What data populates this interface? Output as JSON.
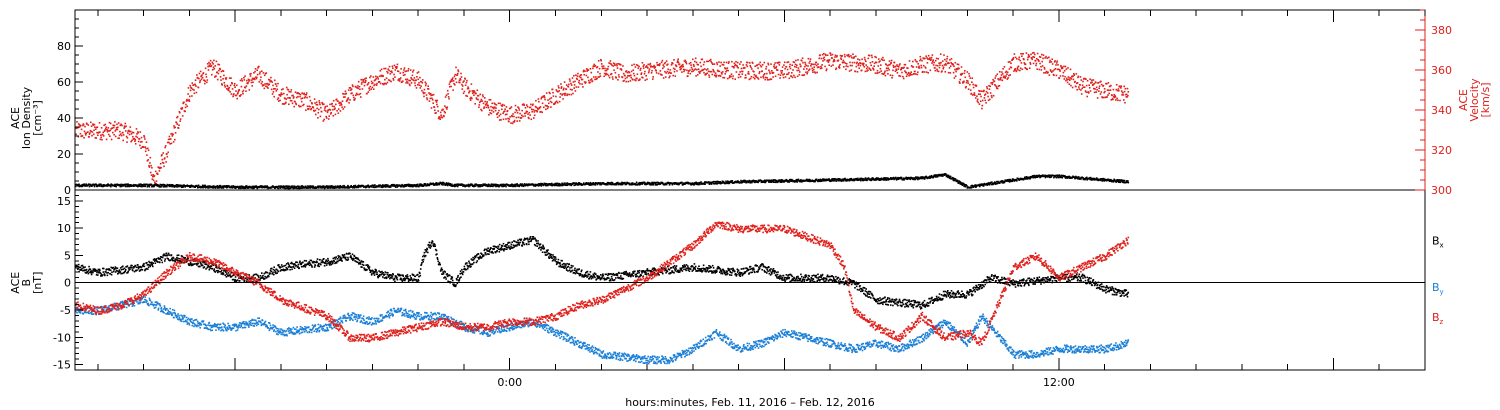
{
  "figure": {
    "xlabel": "hours:minutes, Feb. 11, 2016 – Feb. 12, 2016",
    "x_tick_labels": [
      "0:00",
      "12:00"
    ]
  },
  "colors": {
    "axis": "#000000",
    "density": "#000000",
    "velocity": "#e0201b",
    "bx": "#000000",
    "by": "#1a7fd6",
    "bz": "#e0201b"
  },
  "chart_data": [
    {
      "type": "scatter",
      "panel": "top",
      "left_ylabel": [
        "ACE",
        "Ion Density",
        "[cm⁻³]"
      ],
      "right_ylabel": [
        "ACE",
        "Velocity",
        "[km/s]"
      ],
      "xlim_hours": [
        -9.5,
        20
      ],
      "ylim_left": [
        0,
        100
      ],
      "ylim_right": [
        300,
        390
      ],
      "left_ticks": [
        "0",
        "20",
        "40",
        "60",
        "80"
      ],
      "right_ticks": [
        "300",
        "320",
        "340",
        "360",
        "380"
      ],
      "series": [
        {
          "axis": "left",
          "color_key": "density",
          "x": [
            -9.5,
            -8.0,
            -6.0,
            -4.0,
            -2.0,
            -1.5,
            -1.2,
            0.0,
            2.0,
            4.0,
            5.0,
            7.0,
            9.0,
            9.5,
            10.0,
            11.5,
            12.0,
            12.5,
            13.5
          ],
          "y": [
            3,
            3,
            2,
            2,
            3,
            4,
            3,
            3,
            4,
            4,
            5,
            6,
            7,
            9,
            2,
            8,
            8,
            7,
            5
          ]
        },
        {
          "axis": "right",
          "color_key": "velocity",
          "x": [
            -9.5,
            -8.5,
            -8.0,
            -7.8,
            -7.5,
            -7.0,
            -6.5,
            -6.0,
            -5.5,
            -5.0,
            -4.5,
            -4.0,
            -3.5,
            -3.0,
            -2.5,
            -2.0,
            -1.5,
            -1.2,
            -1.0,
            -0.5,
            0.0,
            0.5,
            1.0,
            1.5,
            2.0,
            2.5,
            3.0,
            4.0,
            5.0,
            6.0,
            7.0,
            8.0,
            8.5,
            9.0,
            9.5,
            10.0,
            10.3,
            11.0,
            11.5,
            12.0,
            12.5,
            13.0,
            13.5
          ],
          "y": [
            330,
            330,
            325,
            305,
            320,
            350,
            362,
            350,
            358,
            348,
            345,
            338,
            348,
            355,
            360,
            355,
            338,
            358,
            352,
            342,
            338,
            340,
            348,
            355,
            362,
            358,
            360,
            362,
            360,
            360,
            365,
            363,
            360,
            363,
            364,
            355,
            345,
            364,
            365,
            360,
            352,
            350,
            348
          ]
        }
      ]
    },
    {
      "type": "scatter",
      "panel": "bottom",
      "left_ylabel": [
        "ACE",
        "B",
        "[nT]"
      ],
      "xlim_hours": [
        -9.5,
        20
      ],
      "ylim": [
        -16,
        17
      ],
      "left_ticks": [
        "-15",
        "-10",
        "-5",
        "0",
        "5",
        "10",
        "15"
      ],
      "zero_line": true,
      "series": [
        {
          "name": "Bx",
          "name_base": "B",
          "name_sub": "x",
          "color_key": "bx",
          "x": [
            -9.5,
            -9.0,
            -8.0,
            -7.5,
            -6.5,
            -6.0,
            -5.5,
            -5.0,
            -4.0,
            -3.5,
            -3.0,
            -2.5,
            -2.0,
            -1.9,
            -1.7,
            -1.5,
            -1.2,
            -1.0,
            -0.5,
            0.0,
            0.5,
            1.0,
            1.5,
            2.0,
            3.0,
            4.0,
            5.0,
            5.5,
            6.0,
            7.0,
            7.5,
            8.0,
            9.0,
            9.5,
            10.0,
            10.5,
            11.0,
            12.0,
            12.5,
            13.0,
            13.5
          ],
          "y": [
            3,
            2,
            3,
            5,
            3,
            1,
            1,
            3,
            4,
            5,
            2,
            1,
            1,
            5,
            8,
            2,
            0,
            3,
            6,
            7,
            8,
            4,
            2,
            1,
            2,
            3,
            2,
            3,
            1,
            1,
            0,
            -3,
            -4,
            -2,
            -2,
            1,
            0,
            1,
            1,
            -1,
            -2
          ]
        },
        {
          "name": "By",
          "name_base": "B",
          "name_sub": "y",
          "color_key": "by",
          "x": [
            -9.5,
            -9.0,
            -8.5,
            -8.0,
            -7.5,
            -7.0,
            -6.5,
            -6.0,
            -5.5,
            -5.0,
            -4.0,
            -3.5,
            -3.0,
            -2.5,
            -2.0,
            -1.5,
            -1.0,
            -0.5,
            0.0,
            0.5,
            1.0,
            1.5,
            2.0,
            3.0,
            3.5,
            4.0,
            4.5,
            5.0,
            5.5,
            6.0,
            7.0,
            7.5,
            8.0,
            8.5,
            9.0,
            9.5,
            10.0,
            10.3,
            11.0,
            11.5,
            12.0,
            13.0,
            13.5
          ],
          "y": [
            -5,
            -5,
            -4,
            -3,
            -5,
            -7,
            -8,
            -8,
            -7,
            -9,
            -8,
            -6,
            -7,
            -5,
            -6,
            -6,
            -8,
            -9,
            -8,
            -7,
            -9,
            -11,
            -13,
            -14,
            -14,
            -12,
            -9,
            -12,
            -11,
            -9,
            -11,
            -12,
            -11,
            -12,
            -10,
            -7,
            -11,
            -6,
            -13,
            -13,
            -12,
            -12,
            -11
          ]
        },
        {
          "name": "Bz",
          "name_base": "B",
          "name_sub": "z",
          "color_key": "bz",
          "x": [
            -9.5,
            -9.0,
            -8.5,
            -8.0,
            -7.5,
            -7.0,
            -6.5,
            -6.0,
            -5.5,
            -5.0,
            -4.0,
            -3.5,
            -3.0,
            -2.5,
            -2.0,
            -1.5,
            -1.0,
            -0.5,
            0.0,
            0.5,
            1.0,
            1.5,
            2.0,
            2.5,
            3.0,
            3.5,
            4.0,
            4.5,
            5.0,
            6.0,
            7.0,
            7.3,
            7.5,
            8.0,
            8.5,
            9.0,
            9.5,
            10.0,
            10.3,
            11.0,
            11.5,
            12.0,
            12.5,
            13.0,
            13.5
          ],
          "y": [
            -4,
            -5,
            -4,
            -2,
            2,
            5,
            4,
            2,
            0,
            -3,
            -6,
            -10,
            -10,
            -9,
            -8,
            -7,
            -8,
            -8,
            -7,
            -7,
            -6,
            -4,
            -3,
            -1,
            1,
            4,
            7,
            11,
            10,
            10,
            7,
            3,
            -5,
            -8,
            -10,
            -6,
            -10,
            -9,
            -11,
            3,
            5,
            1,
            3,
            5,
            8
          ]
        }
      ]
    }
  ]
}
